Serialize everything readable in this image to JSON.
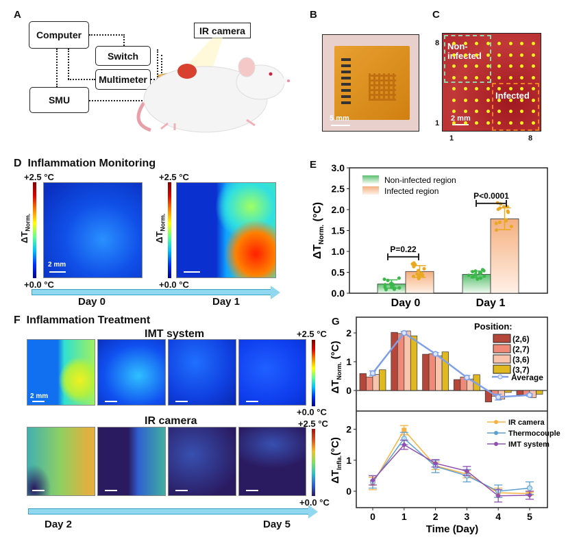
{
  "panels": {
    "a": "A",
    "b": "B",
    "c": "C",
    "d": "D",
    "e": "E",
    "f": "F",
    "g": "G"
  },
  "panel_a": {
    "computer": "Computer",
    "switch": "Switch",
    "multimeter": "Multimeter",
    "smu": "SMU",
    "ir_camera": "IR camera"
  },
  "panel_b": {
    "scale": "5 mm"
  },
  "panel_c": {
    "scale": "2 mm",
    "non_infected": "Non-\ninfected",
    "non1": "Non-",
    "non2": "infected",
    "infected": "Infected",
    "y_top": "8",
    "y_bottom": "1",
    "x_left": "1",
    "x_right": "8"
  },
  "panel_d": {
    "title": "Inflammation Monitoring",
    "cb_max": "+2.5 °C",
    "cb_min": "+0.0 °C",
    "cb_label": "ΔT",
    "cb_sub": "Norm.",
    "scale": "2 mm",
    "day_left": "Day 0",
    "day_right": "Day 1"
  },
  "panel_f": {
    "title": "Inflammation Treatment",
    "row1": "IMT system",
    "row2": "IR camera",
    "cb_max": "+2.5 °C",
    "cb_min": "+0.0 °C",
    "scale": "2 mm",
    "day_left": "Day 2",
    "day_right": "Day 5"
  },
  "colors": {
    "non_infected": "#3cb84a",
    "infected": "#f0a868",
    "dots_infected": "#e8a820",
    "pos26": "#b5473a",
    "pos27": "#f08a78",
    "pos36": "#f9c4ac",
    "pos37": "#e0b820",
    "average": "#7fa0e8",
    "ir": "#f8b040",
    "thermo": "#5aa0d0",
    "imt": "#9050b0"
  },
  "chart_data": [
    {
      "type": "bar",
      "panel": "E",
      "categories": [
        "Day 0",
        "Day 1"
      ],
      "series": [
        {
          "name": "Non-infected region",
          "values": [
            0.22,
            0.45
          ],
          "sd": [
            0.1,
            0.08
          ]
        },
        {
          "name": "Infected region",
          "values": [
            0.52,
            1.78
          ],
          "sd": [
            0.14,
            0.26
          ]
        }
      ],
      "ylabel": "ΔT",
      "ylabel_sub": "Norm.",
      "ylabel_unit": "(°C)",
      "ylim": [
        0,
        3.0
      ],
      "yticks": [
        "0.0",
        "0.5",
        "1.0",
        "1.5",
        "2.0",
        "2.5",
        "3.0"
      ],
      "annotations": [
        "P=0.22",
        "P<0.0001"
      ],
      "legend": "top-left"
    },
    {
      "type": "bar",
      "panel": "G-top",
      "x": [
        0,
        1,
        2,
        3,
        4,
        5
      ],
      "legend_title": "Position:",
      "series": [
        {
          "name": "(2,6)",
          "values": [
            0.59,
            2.02,
            1.26,
            0.38,
            -0.4,
            -0.15
          ]
        },
        {
          "name": "(2,7)",
          "values": [
            0.47,
            1.98,
            1.28,
            0.47,
            -0.2,
            -0.15
          ]
        },
        {
          "name": "(3,6)",
          "values": [
            0.56,
            2.07,
            1.2,
            0.4,
            -0.3,
            -0.25
          ]
        },
        {
          "name": "(3,7)",
          "values": [
            0.72,
            1.9,
            1.34,
            0.55,
            -0.07,
            -0.13
          ]
        }
      ],
      "average": {
        "name": "Average",
        "values": [
          0.6,
          2.0,
          1.27,
          0.45,
          -0.23,
          -0.16
        ],
        "err": [
          0.08,
          0.05,
          0.05,
          0.07,
          0.1,
          0.04
        ]
      },
      "ylabel": "ΔT",
      "ylabel_sub": "Norm.",
      "ylabel_unit": "(°C)",
      "ylim": [
        -0.7,
        2.5
      ],
      "yticks": [
        "0",
        "1",
        "2"
      ],
      "legend": "top-right"
    },
    {
      "type": "line",
      "panel": "G-bottom",
      "x": [
        0,
        1,
        2,
        3,
        4,
        5
      ],
      "series": [
        {
          "name": "IR camera",
          "values": [
            0.25,
            1.97,
            0.82,
            0.55,
            -0.05,
            -0.08
          ],
          "err": [
            0.2,
            0.15,
            0.12,
            0.12,
            0.15,
            0.05
          ]
        },
        {
          "name": "Thermocouple",
          "values": [
            0.3,
            1.7,
            0.8,
            0.5,
            0.0,
            0.1
          ],
          "err": [
            0.2,
            0.2,
            0.2,
            0.2,
            0.2,
            0.2
          ]
        },
        {
          "name": "IMT system",
          "values": [
            0.35,
            1.5,
            0.9,
            0.65,
            -0.15,
            -0.13
          ],
          "err": [
            0.15,
            0.15,
            0.12,
            0.15,
            0.2,
            0.13
          ]
        }
      ],
      "xlabel": "Time (Day)",
      "xticks": [
        "0",
        "1",
        "2",
        "3",
        "4",
        "5"
      ],
      "ylabel": "ΔT",
      "ylabel_sub": "Infla.",
      "ylabel_unit": "(°C)",
      "ylim": [
        -0.5,
        2.5
      ],
      "yticks": [
        "0",
        "1",
        "2"
      ],
      "legend": "top-right"
    }
  ]
}
